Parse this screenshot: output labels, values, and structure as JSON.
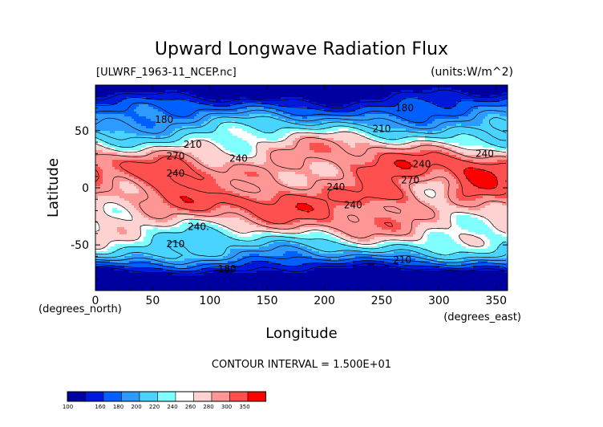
{
  "chart_data": {
    "type": "heatmap",
    "title": "Upward Longwave Radiation Flux",
    "file_label": "[ULWRF_1963-11_NCEP.nc]",
    "units_label": "(units:W/m^2)",
    "xlabel": "Longitude",
    "ylabel": "Latitude",
    "x_unit_label": "(degrees_east)",
    "y_unit_label": "(degrees_north)",
    "xlim": [
      0,
      360
    ],
    "ylim": [
      -90,
      90
    ],
    "x_ticks": [
      0,
      50,
      100,
      150,
      200,
      250,
      300,
      350
    ],
    "y_ticks": [
      -50,
      0,
      50
    ],
    "contour_interval_text": "CONTOUR INTERVAL = 1.500E+01",
    "contour_labels": [
      {
        "text": "180",
        "lon": 60,
        "lat": 57
      },
      {
        "text": "180",
        "lon": 270,
        "lat": 67
      },
      {
        "text": "180",
        "lon": 115,
        "lat": -74
      },
      {
        "text": "210",
        "lon": 250,
        "lat": 49
      },
      {
        "text": "210",
        "lon": 85,
        "lat": 35
      },
      {
        "text": "210",
        "lon": 70,
        "lat": -52
      },
      {
        "text": "210",
        "lon": 268,
        "lat": -66
      },
      {
        "text": "240",
        "lon": 125,
        "lat": 23
      },
      {
        "text": "240",
        "lon": 70,
        "lat": 10
      },
      {
        "text": "240",
        "lon": 285,
        "lat": 18
      },
      {
        "text": "240",
        "lon": 340,
        "lat": 27
      },
      {
        "text": "240",
        "lon": 210,
        "lat": -2
      },
      {
        "text": "240",
        "lon": 225,
        "lat": -18
      },
      {
        "text": "240.",
        "lon": 90,
        "lat": -37
      },
      {
        "text": "270",
        "lon": 70,
        "lat": 25
      },
      {
        "text": "270",
        "lon": 275,
        "lat": 4
      }
    ],
    "colorbar": {
      "levels": [
        "100",
        "160",
        "180",
        "200",
        "220",
        "240",
        "260",
        "280",
        "300",
        "350"
      ],
      "colors": [
        "#0000a0",
        "#0018d8",
        "#0060ff",
        "#2c9aff",
        "#48d4ff",
        "#80ffff",
        "#ffffff",
        "#ffd2d2",
        "#ff9696",
        "#ff5050",
        "#ff0000"
      ]
    },
    "field_model": {
      "description": "",
      "fill_colors": [
        "#0000a0",
        "#0018d8",
        "#0060ff",
        "#2c9aff",
        "#48d4ff",
        "#80ffff",
        "#ffffff",
        "#ffd2d2",
        "#ff9696",
        "#ff5050",
        "#ff0000"
      ],
      "value_thresholds": [
        160,
        180,
        200,
        220,
        240,
        250,
        255,
        265,
        280,
        300
      ],
      "contour_levels": [
        165,
        180,
        195,
        210,
        225,
        240,
        255,
        270,
        285,
        300
      ]
    }
  }
}
